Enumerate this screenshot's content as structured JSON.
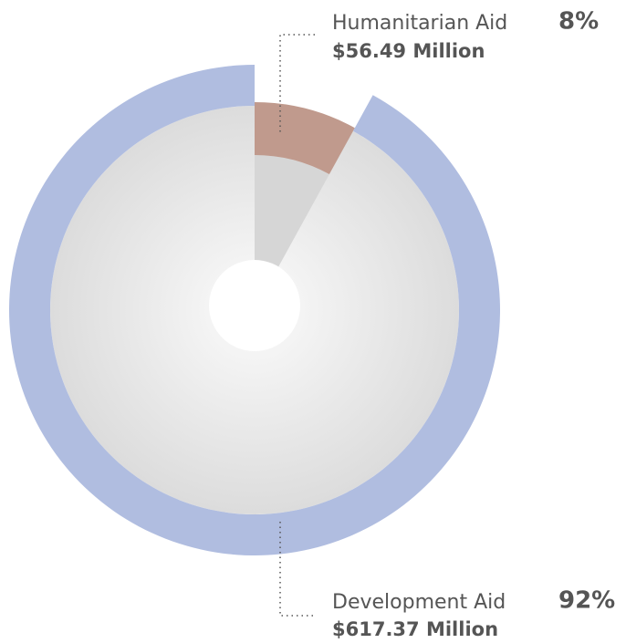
{
  "chart_data": {
    "type": "pie",
    "categories": [
      "Humanitarian Aid",
      "Development Aid"
    ],
    "values": [
      8,
      92
    ],
    "value_labels": [
      "8%",
      "92%"
    ],
    "amount_labels": [
      "$56.49 Million",
      "$617.37 Million"
    ],
    "colors": [
      "#c09a8d",
      "#b0bde0"
    ]
  }
}
